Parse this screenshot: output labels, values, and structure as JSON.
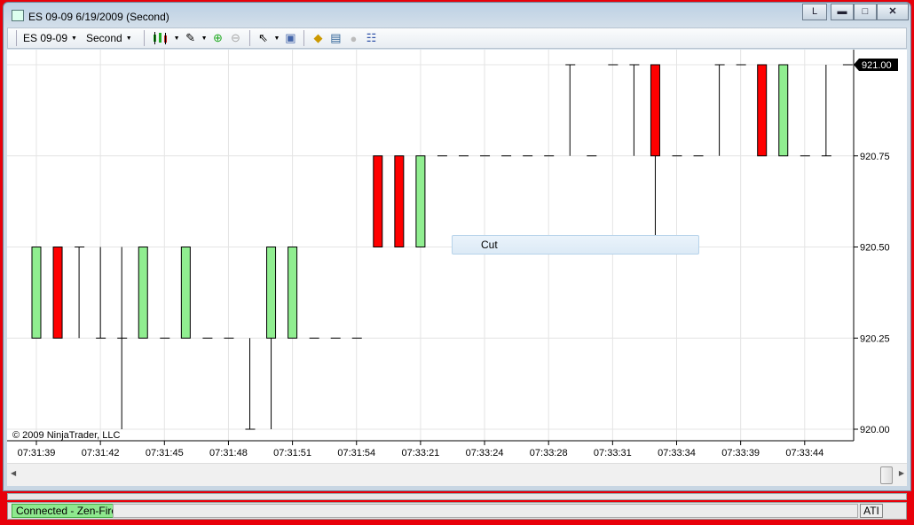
{
  "window": {
    "title": "ES 09-09  6/19/2009 (Second)",
    "btn_l": "L",
    "btn_min": "minimize",
    "btn_max": "maximize",
    "btn_close": "close"
  },
  "toolbar": {
    "instrument": "ES 09-09",
    "period": "Second",
    "icons": [
      "candlestick-chart-icon",
      "pencil-draw-icon",
      "zoom-in-icon",
      "zoom-out-icon",
      "cursor-pointer-icon",
      "data-box-icon",
      "strategy-icon",
      "indicators-icon",
      "disabled-circle-icon",
      "properties-grid-icon"
    ]
  },
  "context_menu": {
    "cut": "Cut"
  },
  "copyright": "© 2009 NinjaTrader, LLC",
  "status": {
    "connection": "Connected - Zen-Fire",
    "ati": "ATI"
  },
  "colors": {
    "up": "#90ee90",
    "down": "#ff0000",
    "border": "#e8000a"
  },
  "chart_data": {
    "type": "candlestick",
    "ylim": [
      920.0,
      921.0
    ],
    "y_ticks": [
      "921.00",
      "920.75",
      "920.50",
      "920.25",
      "920.00"
    ],
    "last_price": "921.00",
    "x_tick_labels": [
      "07:31:39",
      "07:31:42",
      "07:31:45",
      "07:31:48",
      "07:31:51",
      "07:31:54",
      "07:33:21",
      "07:33:24",
      "07:33:28",
      "07:33:31",
      "07:33:34",
      "07:33:39",
      "07:33:44"
    ],
    "grid": true,
    "bars": [
      {
        "o": 920.25,
        "h": 920.5,
        "l": 920.25,
        "c": 920.5
      },
      {
        "o": 920.5,
        "h": 920.5,
        "l": 920.25,
        "c": 920.25
      },
      {
        "o": 920.5,
        "h": 920.5,
        "l": 920.25,
        "c": 920.5
      },
      {
        "o": 920.25,
        "h": 920.5,
        "l": 920.25,
        "c": 920.25
      },
      {
        "o": 920.25,
        "h": 920.5,
        "l": 920.0,
        "c": 920.25
      },
      {
        "o": 920.25,
        "h": 920.5,
        "l": 920.25,
        "c": 920.5
      },
      {
        "o": 920.25,
        "h": 920.25,
        "l": 920.25,
        "c": 920.25
      },
      {
        "o": 920.25,
        "h": 920.5,
        "l": 920.25,
        "c": 920.5
      },
      {
        "o": 920.25,
        "h": 920.25,
        "l": 920.25,
        "c": 920.25
      },
      {
        "o": 920.25,
        "h": 920.25,
        "l": 920.25,
        "c": 920.25
      },
      {
        "o": 920.0,
        "h": 920.25,
        "l": 920.0,
        "c": 920.0
      },
      {
        "o": 920.25,
        "h": 920.5,
        "l": 920.0,
        "c": 920.5
      },
      {
        "o": 920.25,
        "h": 920.5,
        "l": 920.25,
        "c": 920.5
      },
      {
        "o": 920.25,
        "h": 920.25,
        "l": 920.25,
        "c": 920.25
      },
      {
        "o": 920.25,
        "h": 920.25,
        "l": 920.25,
        "c": 920.25
      },
      {
        "o": 920.25,
        "h": 920.25,
        "l": 920.25,
        "c": 920.25
      },
      {
        "o": 920.75,
        "h": 920.75,
        "l": 920.5,
        "c": 920.5
      },
      {
        "o": 920.75,
        "h": 920.75,
        "l": 920.5,
        "c": 920.5
      },
      {
        "o": 920.5,
        "h": 920.75,
        "l": 920.5,
        "c": 920.75
      },
      {
        "o": 920.75,
        "h": 920.75,
        "l": 920.75,
        "c": 920.75
      },
      {
        "o": 920.75,
        "h": 920.75,
        "l": 920.75,
        "c": 920.75
      },
      {
        "o": 920.75,
        "h": 920.75,
        "l": 920.75,
        "c": 920.75
      },
      {
        "o": 920.75,
        "h": 920.75,
        "l": 920.75,
        "c": 920.75
      },
      {
        "o": 920.75,
        "h": 920.75,
        "l": 920.75,
        "c": 920.75
      },
      {
        "o": 920.75,
        "h": 920.75,
        "l": 920.75,
        "c": 920.75
      },
      {
        "o": 921.0,
        "h": 921.0,
        "l": 920.75,
        "c": 921.0
      },
      {
        "o": 920.75,
        "h": 920.75,
        "l": 920.75,
        "c": 920.75
      },
      {
        "o": 921.0,
        "h": 921.0,
        "l": 921.0,
        "c": 921.0
      },
      {
        "o": 921.0,
        "h": 921.0,
        "l": 920.75,
        "c": 921.0
      },
      {
        "o": 921.0,
        "h": 921.0,
        "l": 920.5,
        "c": 920.75
      },
      {
        "o": 920.75,
        "h": 920.75,
        "l": 920.75,
        "c": 920.75
      },
      {
        "o": 920.75,
        "h": 920.75,
        "l": 920.75,
        "c": 920.75
      },
      {
        "o": 921.0,
        "h": 921.0,
        "l": 920.75,
        "c": 921.0
      },
      {
        "o": 921.0,
        "h": 921.0,
        "l": 921.0,
        "c": 921.0
      },
      {
        "o": 921.0,
        "h": 921.0,
        "l": 920.75,
        "c": 920.75
      },
      {
        "o": 920.75,
        "h": 921.0,
        "l": 920.75,
        "c": 921.0
      },
      {
        "o": 920.75,
        "h": 920.75,
        "l": 920.75,
        "c": 920.75
      },
      {
        "o": 920.75,
        "h": 921.0,
        "l": 920.75,
        "c": 920.75
      },
      {
        "o": 921.0,
        "h": 921.0,
        "l": 921.0,
        "c": 921.0
      }
    ]
  }
}
